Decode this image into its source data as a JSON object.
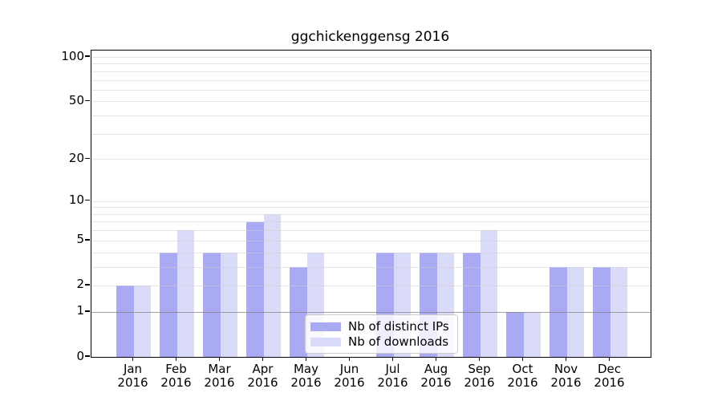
{
  "chart_data": {
    "type": "bar",
    "title": "ggchickenggensg 2016",
    "xlabel": "",
    "ylabel": "",
    "categories": [
      "Jan",
      "Feb",
      "Mar",
      "Apr",
      "May",
      "Jun",
      "Jul",
      "Aug",
      "Sep",
      "Oct",
      "Nov",
      "Dec"
    ],
    "category_year_label": "2016",
    "series": [
      {
        "name": "Nb of distinct IPs",
        "color": "#a9a9f4",
        "values": [
          2,
          4,
          4,
          7,
          3,
          0,
          4,
          4,
          4,
          1,
          3,
          3
        ]
      },
      {
        "name": "Nb of downloads",
        "color": "#dadaf9",
        "values": [
          2,
          6,
          4,
          8,
          4,
          0,
          4,
          4,
          6,
          1,
          3,
          3
        ]
      }
    ],
    "y_axis": {
      "scale": "log1p",
      "ticks": [
        0,
        1,
        2,
        5,
        10,
        20,
        50,
        100
      ],
      "max": 100,
      "minor_gridlines": [
        1,
        2,
        3,
        4,
        5,
        6,
        7,
        8,
        9,
        10,
        20,
        30,
        40,
        50,
        60,
        70,
        80,
        90,
        100
      ],
      "emphasized_gridline": 1
    },
    "legend": {
      "position": "lower-center",
      "entries": [
        "Nb of distinct IPs",
        "Nb of downloads"
      ]
    },
    "grid": true
  }
}
